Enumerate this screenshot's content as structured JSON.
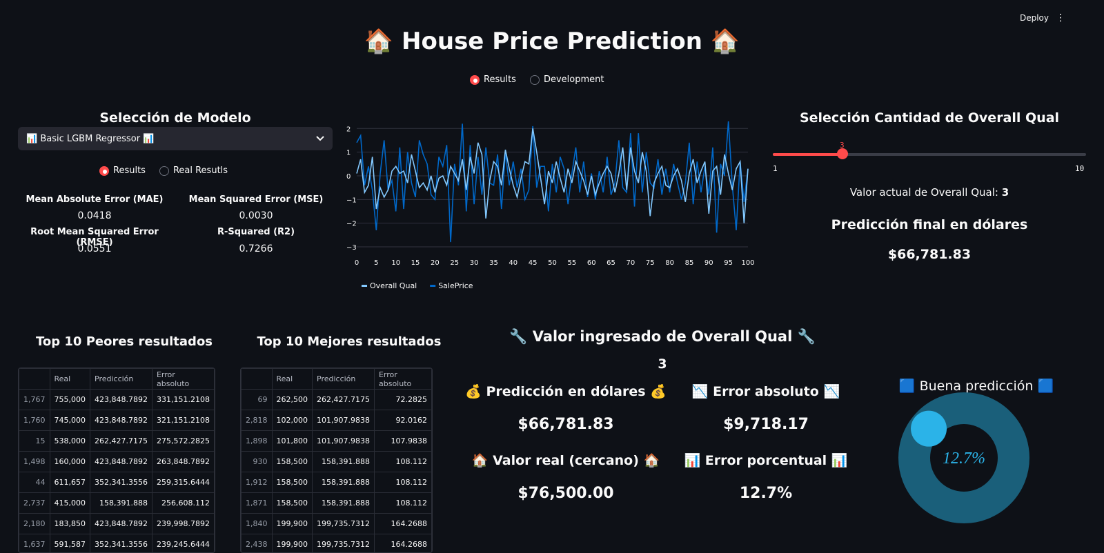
{
  "header": {
    "deploy_label": "Deploy",
    "menu_icon": "⋮"
  },
  "title": "🏠 House Price Prediction 🏠",
  "mode_radio": {
    "options": [
      "Results",
      "Development"
    ],
    "selected": "Results"
  },
  "model_section": {
    "title": "Selección de Modelo",
    "select_value": "📊 Basic LGBM Regressor 📊",
    "radio": {
      "options": [
        "Results",
        "Real Resutls"
      ],
      "selected": "Results"
    },
    "metrics": [
      {
        "label": "Mean Absolute Error (MAE)",
        "value": "0.0418"
      },
      {
        "label": "Mean Squared Error (MSE)",
        "value": "0.0030"
      },
      {
        "label": "Root Mean Squared Error (RMSE)",
        "value": "0.0551"
      },
      {
        "label": "R-Squared (R2)",
        "value": "0.7266"
      }
    ]
  },
  "chart_data": {
    "type": "line",
    "xlim": [
      0,
      100
    ],
    "ylim": [
      -3,
      2.3
    ],
    "x_ticks": [
      "0",
      "5",
      "10",
      "15",
      "20",
      "25",
      "30",
      "35",
      "40",
      "45",
      "50",
      "55",
      "60",
      "65",
      "70",
      "75",
      "80",
      "85",
      "90",
      "95",
      "100"
    ],
    "y_ticks": [
      "2",
      "1",
      "0",
      "−1",
      "−2",
      "−3"
    ],
    "legend_position": "bottom",
    "grid": true,
    "series": [
      {
        "name": "Overall Qual",
        "color": "#83c9ff",
        "values": [
          0.1,
          0.7,
          -0.7,
          -0.4,
          0.8,
          -1.4,
          -0.5,
          -0.9,
          -0.6,
          0.2,
          0.4,
          0.1,
          0.2,
          -0.3,
          0.9,
          0.2,
          -0.5,
          -0.3,
          -0.6,
          0.0,
          -0.7,
          -0.1,
          0.0,
          -0.4,
          0.4,
          0.1,
          -0.2,
          0.7,
          -0.6,
          0.8,
          0.1,
          1.4,
          0.9,
          -1.8,
          -0.2,
          0.6,
          0.4,
          -0.4,
          1.1,
          0.3,
          -0.4,
          -0.9,
          -0.1,
          0.6,
          0.5,
          2.0,
          1.0,
          -0.1,
          -1.2,
          0.2,
          -0.3,
          0.6,
          -0.1,
          -0.7,
          0.3,
          -0.3,
          0.6,
          0.2,
          -0.2,
          -0.8,
          0.0,
          -0.8,
          -0.3,
          0.1,
          0.4,
          0.1,
          -0.7,
          0.1,
          1.2,
          -0.6,
          1.2,
          0.2,
          -0.3,
          1.0,
          0.2,
          -1.7,
          -0.3,
          0.1,
          0.4,
          -0.4,
          -0.5,
          0.0,
          0.3,
          -0.2,
          -1.1,
          0.1,
          0.7,
          -0.3,
          0.2,
          0.6,
          -1.6,
          0.2,
          0.4,
          -0.8,
          0.9,
          0.1,
          -0.6,
          0.3,
          0.6,
          -2.0,
          0.3
        ]
      },
      {
        "name": "SalePrice",
        "color": "#0068c9",
        "values": [
          1.4,
          1.7,
          -0.4,
          0.4,
          -0.6,
          -2.3,
          0.1,
          1.5,
          -0.6,
          -0.2,
          -1.5,
          1.2,
          -1.4,
          1.0,
          -0.3,
          -0.9,
          1.5,
          0.9,
          0.5,
          -0.8,
          -1.0,
          0.8,
          0.4,
          1.3,
          -2.8,
          0.5,
          -0.4,
          2.2,
          -1.5,
          1.3,
          -1.2,
          0.8,
          -0.8,
          1.2,
          -0.3,
          -0.4,
          0.9,
          -1.4,
          1.0,
          -0.4,
          0.6,
          -0.5,
          0.3,
          -1.0,
          -0.6,
          2.1,
          -0.5,
          0.4,
          0.4,
          -1.5,
          0.5,
          -0.7,
          0.8,
          0.3,
          -1.2,
          0.1,
          1.2,
          -0.7,
          0.6,
          -0.9,
          0.1,
          -1.0,
          0.2,
          -0.7,
          0.8,
          -0.8,
          -0.3,
          1.5,
          -0.5,
          -0.7,
          1.8,
          -1.3,
          1.8,
          -0.7,
          1.0,
          -0.3,
          -0.5,
          0.7,
          -0.8,
          0.3,
          -0.7,
          0.5,
          -0.3,
          -1.0,
          -0.3,
          1.4,
          -1.2,
          0.6,
          -0.7,
          0.4,
          -0.8,
          1.2,
          -2.4,
          0.5,
          0.0,
          2.3,
          -0.4,
          -2.3,
          0.6,
          -1.1,
          0.3
        ]
      }
    ]
  },
  "qual_section": {
    "title": "Selección Cantidad de Overall Qual",
    "slider": {
      "min": "1",
      "max": "10",
      "value": "3",
      "fraction": 0.222
    },
    "current_label": "Valor actual de Overall Qual:",
    "current_value": "3",
    "pred_title": "Predicción final en dólares",
    "pred_value": "$66,781.83"
  },
  "worst_table": {
    "title": "Top 10 Peores resultados",
    "columns": [
      "",
      "Real",
      "Predicción",
      "Error absoluto"
    ],
    "rows": [
      [
        "1,767",
        "755,000",
        "423,848.7892",
        "331,151.2108"
      ],
      [
        "1,760",
        "745,000",
        "423,848.7892",
        "321,151.2108"
      ],
      [
        "15",
        "538,000",
        "262,427.7175",
        "275,572.2825"
      ],
      [
        "1,498",
        "160,000",
        "423,848.7892",
        "263,848.7892"
      ],
      [
        "44",
        "611,657",
        "352,341.3556",
        "259,315.6444"
      ],
      [
        "2,737",
        "415,000",
        "158,391.888",
        "256,608.112"
      ],
      [
        "2,180",
        "183,850",
        "423,848.7892",
        "239,998.7892"
      ],
      [
        "1,637",
        "591,587",
        "352,341.3556",
        "239,245.6444"
      ],
      [
        "",
        "",
        "",
        ""
      ]
    ]
  },
  "best_table": {
    "title": "Top 10 Mejores resultados",
    "columns": [
      "",
      "Real",
      "Predicción",
      "Error absoluto"
    ],
    "rows": [
      [
        "69",
        "262,500",
        "262,427.7175",
        "72.2825"
      ],
      [
        "2,818",
        "102,000",
        "101,907.9838",
        "92.0162"
      ],
      [
        "1,898",
        "101,800",
        "101,907.9838",
        "107.9838"
      ],
      [
        "930",
        "158,500",
        "158,391.888",
        "108.112"
      ],
      [
        "1,912",
        "158,500",
        "158,391.888",
        "108.112"
      ],
      [
        "1,871",
        "158,500",
        "158,391.888",
        "108.112"
      ],
      [
        "1,840",
        "199,900",
        "199,735.7312",
        "164.2688"
      ],
      [
        "2,438",
        "199,900",
        "199,735.7312",
        "164.2688"
      ],
      [
        "",
        "",
        "",
        ""
      ]
    ]
  },
  "input_section": {
    "title": "🔧 Valor ingresado de Overall Qual 🔧",
    "value": "3",
    "pred_label": "💰 Predicción en dólares 💰",
    "pred_value": "$66,781.83",
    "abs_label": "📉 Error absoluto 📉",
    "abs_value": "$9,718.17",
    "real_label": "🏠 Valor real (cercano) 🏠",
    "real_value": "$76,500.00",
    "pct_label": "📊 Error porcentual 📊",
    "pct_value": "12.7%"
  },
  "donut": {
    "title": "🟦 Buena predicción 🟦",
    "label": "12.7%",
    "fraction": 0.127,
    "ring_color": "#1a5f7a",
    "accent_color": "#2bb3e8"
  }
}
